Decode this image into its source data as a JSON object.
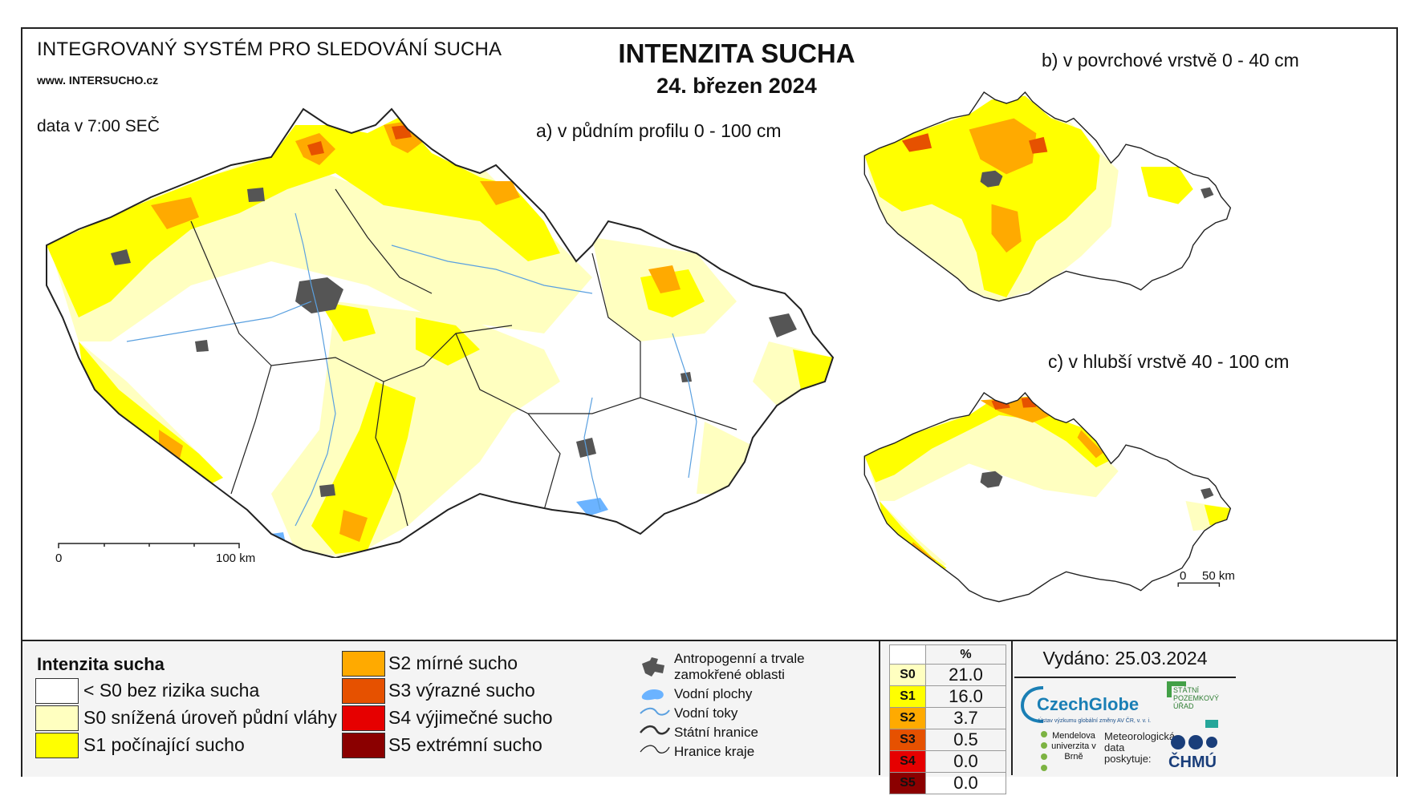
{
  "header": {
    "system_title": "INTEGROVANÝ SYSTÉM PRO SLEDOVÁNÍ SUCHA",
    "website": "www. INTERSUCHO.cz",
    "data_time": "data v 7:00 SEČ",
    "main_title": "INTENZITA SUCHA",
    "date": "24. březen 2024",
    "panel_a_title": "a) v půdním profilu 0 - 100 cm",
    "panel_b_title": "b) v povrchové vrstvě 0 - 40 cm",
    "panel_c_title": "c) v hlubší vrstvě 40 - 100 cm"
  },
  "scale": {
    "main_start": "0",
    "main_end": "100 km",
    "small_start": "0",
    "small_end": "50 km"
  },
  "legend": {
    "heading": "Intenzita sucha",
    "classes": [
      {
        "label": "< S0 bez rizika sucha",
        "color": "#ffffff"
      },
      {
        "label": "S0 snížená úroveň půdní vláhy",
        "color": "#ffffc0"
      },
      {
        "label": "S1 počínající sucho",
        "color": "#ffff00"
      },
      {
        "label": "S2 mírné sucho",
        "color": "#ffaa00"
      },
      {
        "label": "S3 výrazné sucho",
        "color": "#e65100"
      },
      {
        "label": "S4 výjimečné sucho",
        "color": "#e60000"
      },
      {
        "label": "S5 extrémní sucho",
        "color": "#8b0000"
      }
    ],
    "symbols": [
      {
        "label": "Antropogenní a trvale zamokřené oblasti",
        "icon": "urban-area-icon"
      },
      {
        "label": "Vodní plochy",
        "icon": "water-body-icon"
      },
      {
        "label": "Vodní toky",
        "icon": "river-icon"
      },
      {
        "label": "Státní hranice",
        "icon": "state-border-icon"
      },
      {
        "label": "Hranice kraje",
        "icon": "region-border-icon"
      }
    ]
  },
  "stats": {
    "unit": "%",
    "rows": [
      {
        "code": "S0",
        "value": "21.0",
        "color": "#ffffc0"
      },
      {
        "code": "S1",
        "value": "16.0",
        "color": "#ffff00"
      },
      {
        "code": "S2",
        "value": "3.7",
        "color": "#ffaa00"
      },
      {
        "code": "S3",
        "value": "0.5",
        "color": "#e65100"
      },
      {
        "code": "S4",
        "value": "0.0",
        "color": "#e60000"
      },
      {
        "code": "S5",
        "value": "0.0",
        "color": "#8b0000"
      }
    ]
  },
  "issued": "Vydáno: 25.03.2024",
  "logos": {
    "czechglobe": "CzechGlobe",
    "czechglobe_sub": "Ústav výzkumu globální změny AV ČR, v. v. i.",
    "spu": "STÁTNÍ POZEMKOVÝ ÚŘAD",
    "mendel": "Mendelova univerzita v Brně",
    "meteo": "Meteorologická data poskytuje:",
    "chmu": "ČHMÚ"
  }
}
